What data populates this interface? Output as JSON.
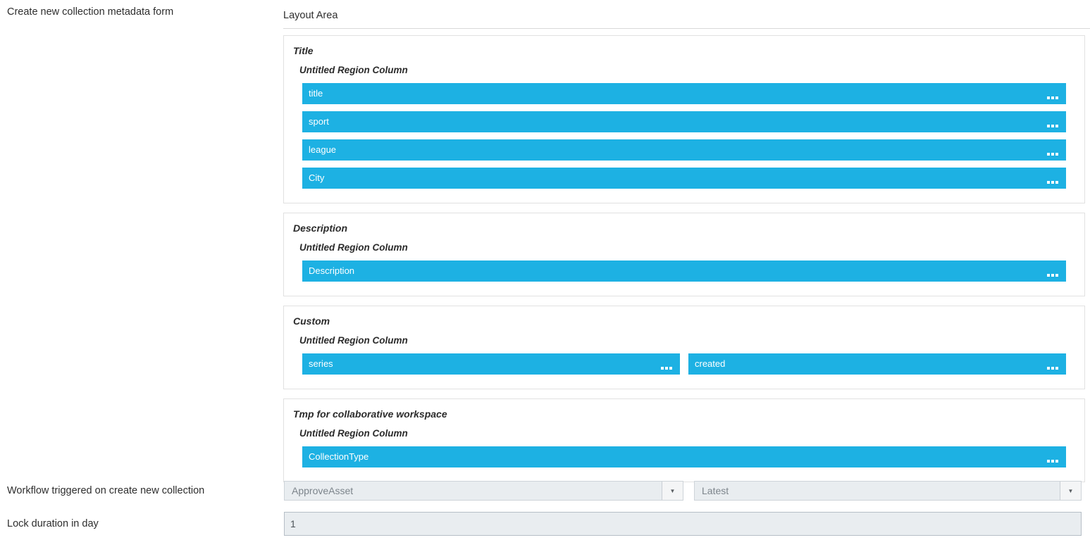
{
  "header": {
    "form_label": "Create new collection metadata form",
    "layout_area_label": "Layout Area"
  },
  "layout_sections": [
    {
      "id": "title",
      "title": "Title",
      "region_label": "Untitled Region Column",
      "rows": [
        [
          "title"
        ],
        [
          "sport"
        ],
        [
          "league"
        ],
        [
          "City"
        ]
      ]
    },
    {
      "id": "description",
      "title": "Description",
      "region_label": "Untitled Region Column",
      "rows": [
        [
          "Description"
        ]
      ]
    },
    {
      "id": "custom",
      "title": "Custom",
      "region_label": "Untitled Region Column",
      "rows": [
        [
          "series",
          "created"
        ]
      ]
    },
    {
      "id": "tmp-for-collaborative-workspace",
      "title": "Tmp for collaborative workspace",
      "region_label": "Untitled Region Column",
      "rows": [
        [
          "CollectionType"
        ]
      ]
    }
  ],
  "workflow_row": {
    "label": "Workflow triggered on create new collection",
    "workflow_dropdown": {
      "value": "ApproveAsset"
    },
    "version_dropdown": {
      "value": "Latest"
    }
  },
  "lock_row": {
    "label": "Lock duration in day",
    "value": "1"
  },
  "icons": {
    "dropdown_arrow": "▼",
    "drag_handle": "three-dots-handle"
  },
  "colors": {
    "field_bar": "#1db1e3",
    "field_bar_text": "#ffffff",
    "section_border": "#e1e1e1",
    "dropdown_bg": "#e9edf0",
    "dropdown_text": "#7d858c",
    "input_border": "#b6bec6",
    "label_text": "#2e2e2e"
  }
}
